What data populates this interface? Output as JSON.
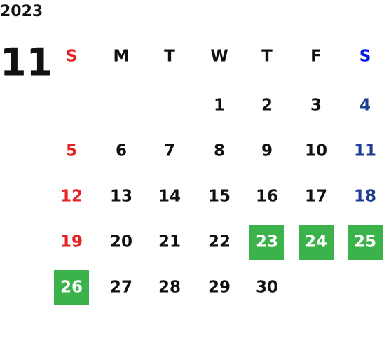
{
  "year": "2023",
  "month": "11",
  "weekdays": [
    "S",
    "M",
    "T",
    "W",
    "T",
    "F",
    "S"
  ],
  "weeks": [
    [
      null,
      null,
      null,
      1,
      2,
      3,
      4
    ],
    [
      5,
      6,
      7,
      8,
      9,
      10,
      11
    ],
    [
      12,
      13,
      14,
      15,
      16,
      17,
      18
    ],
    [
      19,
      20,
      21,
      22,
      23,
      24,
      25
    ],
    [
      26,
      27,
      28,
      29,
      30,
      null,
      null
    ]
  ],
  "highlighted_days": [
    23,
    24,
    25,
    26
  ],
  "highlight_color": "#3bb34a",
  "sunday_color": "#e52320",
  "saturday_header_color": "#0015e6",
  "saturday_color": "#1d3d91",
  "text_color": "#111111"
}
